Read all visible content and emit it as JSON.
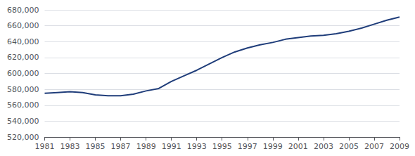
{
  "chart_data": {
    "type": "line",
    "x": [
      1981,
      1982,
      1983,
      1984,
      1985,
      1986,
      1987,
      1988,
      1989,
      1990,
      1991,
      1992,
      1993,
      1994,
      1995,
      1996,
      1997,
      1998,
      1999,
      2000,
      2001,
      2002,
      2003,
      2004,
      2005,
      2006,
      2007,
      2008,
      2009
    ],
    "values": [
      575000,
      576000,
      577000,
      576000,
      573000,
      572000,
      572000,
      574000,
      578000,
      581000,
      590000,
      597000,
      604000,
      612000,
      620000,
      627000,
      632000,
      636000,
      639000,
      643000,
      645000,
      647000,
      648000,
      650000,
      653000,
      657000,
      662000,
      667000,
      671000
    ],
    "color": "#1F3D7A",
    "xlim": [
      1981,
      2009
    ],
    "xticks": [
      1981,
      1983,
      1985,
      1987,
      1989,
      1991,
      1993,
      1995,
      1997,
      1999,
      2001,
      2003,
      2005,
      2007,
      2009
    ],
    "ylim": [
      520000,
      680000
    ],
    "yticks": [
      {
        "value": 520000,
        "label": "520,000"
      },
      {
        "value": 540000,
        "label": "540,000"
      },
      {
        "value": 560000,
        "label": "560,000"
      },
      {
        "value": 580000,
        "label": "580,000"
      },
      {
        "value": 600000,
        "label": "600,000"
      },
      {
        "value": 620000,
        "label": "620,000"
      },
      {
        "value": 640000,
        "label": "640,000"
      },
      {
        "value": 660000,
        "label": "660,000"
      },
      {
        "value": 680000,
        "label": "680,000"
      }
    ],
    "grid": true
  }
}
